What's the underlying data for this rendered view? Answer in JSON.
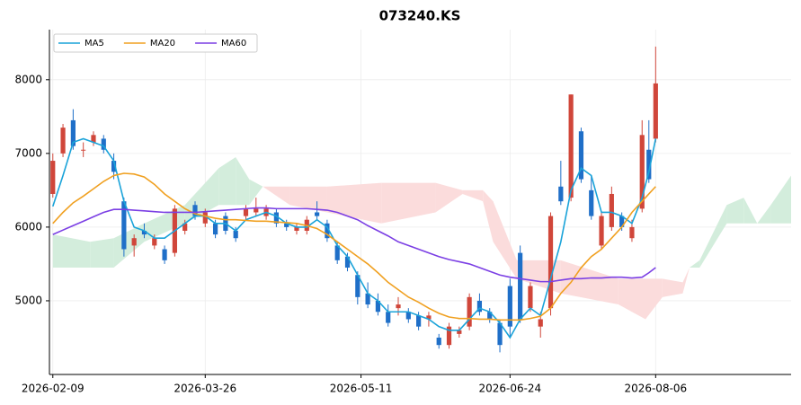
{
  "chart_data": {
    "type": "candlestick",
    "title": "073240.KS",
    "x": [
      "2026-02-09",
      "2026-02-12",
      "2026-02-15",
      "2026-02-18",
      "2026-02-21",
      "2026-02-24",
      "2026-02-27",
      "2026-03-02",
      "2026-03-05",
      "2026-03-08",
      "2026-03-11",
      "2026-03-14",
      "2026-03-17",
      "2026-03-20",
      "2026-03-23",
      "2026-03-26",
      "2026-03-29",
      "2026-04-01",
      "2026-04-04",
      "2026-04-07",
      "2026-04-10",
      "2026-04-13",
      "2026-04-16",
      "2026-04-19",
      "2026-04-22",
      "2026-04-25",
      "2026-04-28",
      "2026-05-01",
      "2026-05-04",
      "2026-05-07",
      "2026-05-10",
      "2026-05-13",
      "2026-05-16",
      "2026-05-19",
      "2026-05-22",
      "2026-05-25",
      "2026-05-28",
      "2026-05-31",
      "2026-06-03",
      "2026-06-06",
      "2026-06-09",
      "2026-06-12",
      "2026-06-15",
      "2026-06-18",
      "2026-06-21",
      "2026-06-24",
      "2026-06-27",
      "2026-06-30",
      "2026-07-03",
      "2026-07-06",
      "2026-07-09",
      "2026-07-12",
      "2026-07-15",
      "2026-07-18",
      "2026-07-21",
      "2026-07-24",
      "2026-07-27",
      "2026-07-30",
      "2026-08-02",
      "2026-08-04",
      "2026-08-06"
    ],
    "open": [
      6450,
      7000,
      7450,
      7050,
      7150,
      7200,
      6900,
      6350,
      5750,
      5950,
      5750,
      5700,
      5650,
      5950,
      6300,
      6050,
      6050,
      6150,
      5950,
      6150,
      6200,
      6150,
      6200,
      6050,
      5950,
      5950,
      6200,
      6050,
      5750,
      5600,
      5350,
      5100,
      5000,
      4850,
      4900,
      4850,
      4800,
      4750,
      4500,
      4400,
      4550,
      4650,
      5000,
      4850,
      4700,
      5200,
      5650,
      4900,
      4650,
      4900,
      6550,
      6400,
      7300,
      6500,
      5750,
      6000,
      6150,
      5850,
      6250,
      7050,
      7200
    ],
    "high": [
      7000,
      7400,
      7600,
      7150,
      7300,
      7250,
      7000,
      6400,
      5900,
      6050,
      5900,
      5750,
      6300,
      6100,
      6350,
      6250,
      6100,
      6200,
      6000,
      6300,
      6400,
      6300,
      6250,
      6100,
      6050,
      6150,
      6350,
      6100,
      5800,
      5650,
      5400,
      5250,
      5100,
      4950,
      5050,
      4900,
      4850,
      4850,
      4550,
      4700,
      4650,
      5100,
      5100,
      4900,
      4750,
      5300,
      5750,
      5250,
      4850,
      6200,
      6900,
      7800,
      7350,
      6700,
      6200,
      6550,
      6200,
      6100,
      7450,
      7450,
      8450
    ],
    "low": [
      6400,
      6950,
      7050,
      6950,
      7100,
      7000,
      6650,
      5600,
      5600,
      5850,
      5700,
      5500,
      5600,
      5900,
      6100,
      6000,
      5850,
      5900,
      5800,
      6100,
      6150,
      6100,
      6000,
      5950,
      5900,
      5900,
      6100,
      5800,
      5500,
      5400,
      4950,
      4900,
      4800,
      4650,
      4800,
      4700,
      4600,
      4650,
      4350,
      4350,
      4500,
      4600,
      4800,
      4700,
      4300,
      4500,
      4700,
      4850,
      4500,
      4800,
      6300,
      6350,
      6600,
      6100,
      5700,
      5950,
      5950,
      5800,
      6200,
      6600,
      7150
    ],
    "close": [
      6900,
      7350,
      7100,
      7050,
      7250,
      7050,
      6750,
      5700,
      5850,
      5900,
      5850,
      5550,
      6250,
      6050,
      6150,
      6200,
      5900,
      5950,
      5850,
      6250,
      6250,
      6250,
      6050,
      6000,
      6000,
      6100,
      6150,
      5850,
      5550,
      5450,
      5050,
      4950,
      4850,
      4700,
      4950,
      4750,
      4650,
      4800,
      4400,
      4650,
      4600,
      5050,
      4850,
      4750,
      4400,
      4650,
      4750,
      5200,
      4750,
      6150,
      6350,
      7800,
      6650,
      6150,
      6150,
      6450,
      6000,
      6000,
      7250,
      6650,
      7950
    ],
    "up_color": "#d0463a",
    "down_color": "#1f6fc8",
    "series": [
      {
        "name": "MA5",
        "color": "#1aa3d9",
        "values": [
          6280,
          6700,
          7150,
          7200,
          7150,
          7100,
          6900,
          6350,
          6000,
          5950,
          5850,
          5850,
          5950,
          6050,
          6150,
          6150,
          6050,
          6050,
          5950,
          6100,
          6150,
          6200,
          6150,
          6050,
          6000,
          6000,
          6100,
          6000,
          5750,
          5600,
          5350,
          5100,
          5000,
          4850,
          4850,
          4850,
          4800,
          4750,
          4650,
          4600,
          4600,
          4750,
          4900,
          4850,
          4700,
          4500,
          4750,
          4900,
          4800,
          5300,
          5800,
          6500,
          6800,
          6700,
          6200,
          6200,
          6150,
          6050,
          6400,
          6750,
          7200
        ]
      },
      {
        "name": "MA20",
        "color": "#f0a020",
        "values": [
          6050,
          6200,
          6330,
          6420,
          6520,
          6620,
          6700,
          6730,
          6720,
          6680,
          6580,
          6450,
          6350,
          6250,
          6180,
          6150,
          6120,
          6100,
          6100,
          6090,
          6080,
          6080,
          6070,
          6060,
          6050,
          6020,
          5980,
          5900,
          5800,
          5700,
          5600,
          5500,
          5380,
          5250,
          5150,
          5050,
          4980,
          4900,
          4830,
          4780,
          4760,
          4760,
          4750,
          4750,
          4740,
          4740,
          4740,
          4760,
          4790,
          4900,
          5100,
          5250,
          5450,
          5600,
          5700,
          5850,
          6000,
          6200,
          6350,
          6450,
          6550
        ]
      },
      {
        "name": "MA60",
        "color": "#7b3fe4",
        "values": [
          5900,
          5960,
          6020,
          6080,
          6140,
          6200,
          6240,
          6240,
          6230,
          6220,
          6210,
          6200,
          6200,
          6200,
          6200,
          6210,
          6220,
          6230,
          6240,
          6250,
          6260,
          6260,
          6250,
          6250,
          6250,
          6250,
          6240,
          6230,
          6200,
          6150,
          6100,
          6020,
          5950,
          5880,
          5800,
          5750,
          5700,
          5650,
          5600,
          5560,
          5530,
          5500,
          5450,
          5400,
          5350,
          5320,
          5300,
          5280,
          5260,
          5260,
          5280,
          5300,
          5300,
          5310,
          5310,
          5320,
          5320,
          5310,
          5320,
          5380,
          5450
        ]
      }
    ],
    "cloud": {
      "x": [
        "2026-02-09",
        "2026-02-20",
        "2026-02-27",
        "2026-03-08",
        "2026-03-20",
        "2026-03-30",
        "2026-04-04",
        "2026-04-08",
        "2026-04-12",
        "2026-04-20",
        "2026-05-01",
        "2026-05-17",
        "2026-06-02",
        "2026-06-10",
        "2026-06-16",
        "2026-06-19",
        "2026-06-26",
        "2026-07-09",
        "2026-07-26",
        "2026-08-03",
        "2026-08-08",
        "2026-08-14",
        "2026-08-16",
        "2026-08-19",
        "2026-08-27",
        "2026-09-01",
        "2026-09-05",
        "2026-09-09",
        "2026-09-15"
      ],
      "span_a": [
        5900,
        5800,
        5850,
        6050,
        6300,
        6800,
        6950,
        6650,
        6550,
        6300,
        6200,
        6050,
        6200,
        6450,
        6350,
        5800,
        5300,
        5100,
        4950,
        4750,
        5050,
        5100,
        5450,
        5550,
        6300,
        6400,
        6050,
        6300,
        6700
      ],
      "span_b": [
        5450,
        5450,
        5450,
        5800,
        6050,
        6300,
        6300,
        6300,
        6550,
        6550,
        6550,
        6600,
        6600,
        6500,
        6500,
        6350,
        5550,
        5550,
        5300,
        5300,
        5300,
        5250,
        5450,
        5450,
        6050,
        6050,
        6050,
        6050,
        6050
      ],
      "up_color": "#d3eddc",
      "down_color": "#fbdcdc"
    },
    "xlim": [
      "2026-02-08",
      "2026-09-15"
    ],
    "xticks": [
      "2026-02-09",
      "2026-03-26",
      "2026-05-11",
      "2026-06-24",
      "2026-08-06"
    ],
    "ylim": [
      4000,
      8680
    ],
    "yticks": [
      5000,
      6000,
      7000,
      8000
    ],
    "grid": true,
    "legend": "upper left"
  }
}
